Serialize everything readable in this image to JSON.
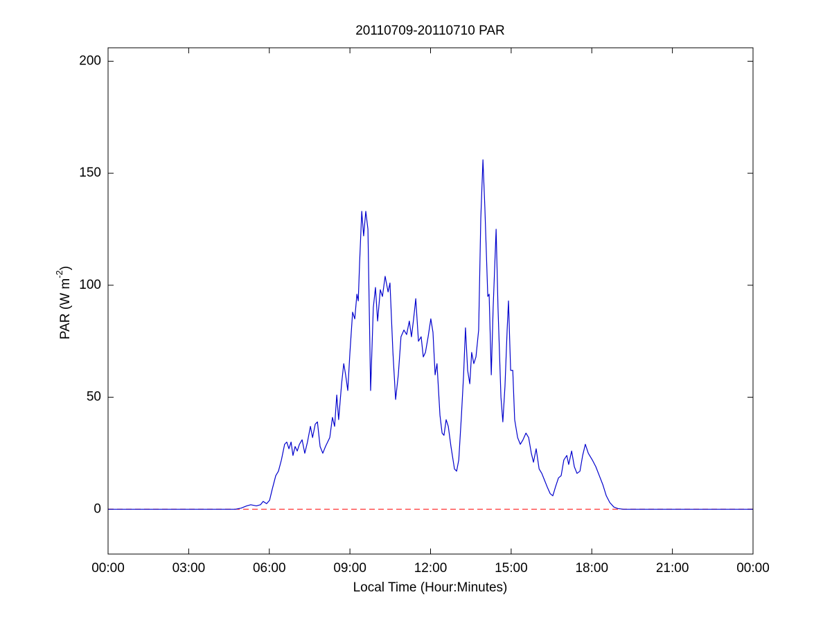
{
  "chart_data": {
    "type": "line",
    "title": "20110709-20110710 PAR",
    "xlabel": "Local Time (Hour:Minutes)",
    "ylabel": [
      "PAR (W m",
      "-2",
      ")"
    ],
    "xlim": [
      0,
      24
    ],
    "ylim": [
      -20,
      206
    ],
    "xticks": [
      {
        "value": 0,
        "label": "00:00"
      },
      {
        "value": 3,
        "label": "03:00"
      },
      {
        "value": 6,
        "label": "06:00"
      },
      {
        "value": 9,
        "label": "09:00"
      },
      {
        "value": 12,
        "label": "12:00"
      },
      {
        "value": 15,
        "label": "15:00"
      },
      {
        "value": 18,
        "label": "18:00"
      },
      {
        "value": 21,
        "label": "21:00"
      },
      {
        "value": 24,
        "label": "00:00"
      }
    ],
    "yticks": [
      0,
      50,
      100,
      150,
      200
    ],
    "grid": false,
    "reference_line": {
      "value": 0,
      "color": "#ff0000",
      "style": "dashed"
    },
    "series": [
      {
        "color": "#0000cc",
        "x": [
          0,
          4.74,
          4.95,
          5.16,
          5.31,
          5.52,
          5.67,
          5.77,
          5.9,
          6.01,
          6.11,
          6.24,
          6.34,
          6.45,
          6.57,
          6.65,
          6.73,
          6.81,
          6.88,
          6.96,
          7.04,
          7.12,
          7.22,
          7.32,
          7.42,
          7.53,
          7.61,
          7.71,
          7.79,
          7.89,
          7.99,
          8.09,
          8.25,
          8.35,
          8.43,
          8.51,
          8.58,
          8.69,
          8.77,
          8.84,
          8.92,
          9.0,
          9.1,
          9.18,
          9.26,
          9.31,
          9.36,
          9.44,
          9.51,
          9.59,
          9.67,
          9.77,
          9.87,
          9.95,
          10.03,
          10.13,
          10.21,
          10.31,
          10.42,
          10.49,
          10.6,
          10.7,
          10.8,
          10.9,
          11.01,
          11.11,
          11.21,
          11.29,
          11.37,
          11.45,
          11.55,
          11.65,
          11.73,
          11.81,
          11.91,
          12.01,
          12.09,
          12.17,
          12.24,
          12.35,
          12.43,
          12.5,
          12.58,
          12.66,
          12.76,
          12.89,
          12.97,
          13.05,
          13.15,
          13.23,
          13.3,
          13.38,
          13.46,
          13.53,
          13.61,
          13.69,
          13.79,
          13.87,
          13.95,
          14.02,
          14.13,
          14.18,
          14.26,
          14.33,
          14.44,
          14.51,
          14.62,
          14.69,
          14.77,
          14.85,
          14.9,
          14.98,
          15.06,
          15.13,
          15.24,
          15.34,
          15.44,
          15.55,
          15.65,
          15.75,
          15.83,
          15.93,
          16.04,
          16.14,
          16.24,
          16.34,
          16.45,
          16.55,
          16.65,
          16.76,
          16.86,
          16.96,
          17.07,
          17.14,
          17.25,
          17.35,
          17.45,
          17.56,
          17.66,
          17.76,
          17.87,
          18.02,
          18.15,
          18.28,
          18.41,
          18.54,
          18.67,
          18.82,
          18.97,
          19.18,
          24
        ],
        "values": [
          0,
          0,
          0.5,
          1.5,
          2,
          1.5,
          2,
          3.5,
          2.5,
          4,
          9,
          15,
          17,
          22,
          29,
          30,
          27,
          30,
          24,
          28,
          26,
          29,
          31,
          25,
          30,
          37,
          32,
          38,
          39,
          28,
          25,
          28,
          32,
          41,
          37,
          51,
          40,
          56,
          65,
          60,
          53,
          70,
          88,
          85,
          96,
          93,
          110,
          133,
          122,
          133,
          125,
          53,
          90,
          99,
          84,
          98,
          95,
          104,
          97,
          101,
          70,
          49,
          60,
          77,
          80,
          78,
          84,
          77,
          85,
          94,
          75,
          77,
          68,
          70,
          77,
          85,
          79,
          60,
          65,
          42,
          34,
          33,
          40,
          37,
          28,
          18,
          17,
          22,
          42,
          60,
          81,
          62,
          56,
          70,
          65,
          68,
          80,
          130,
          156,
          135,
          95,
          96,
          60,
          90,
          125,
          90,
          50,
          39,
          55,
          80,
          93,
          62,
          62,
          40,
          32,
          29,
          31,
          34,
          32,
          25,
          21,
          27,
          18,
          16,
          13,
          10,
          7,
          6,
          10,
          14,
          15,
          22,
          24,
          20,
          26,
          19,
          16,
          17,
          24,
          29,
          25,
          22,
          19,
          15,
          11,
          6,
          3,
          1,
          0.3,
          0,
          0
        ]
      }
    ]
  }
}
